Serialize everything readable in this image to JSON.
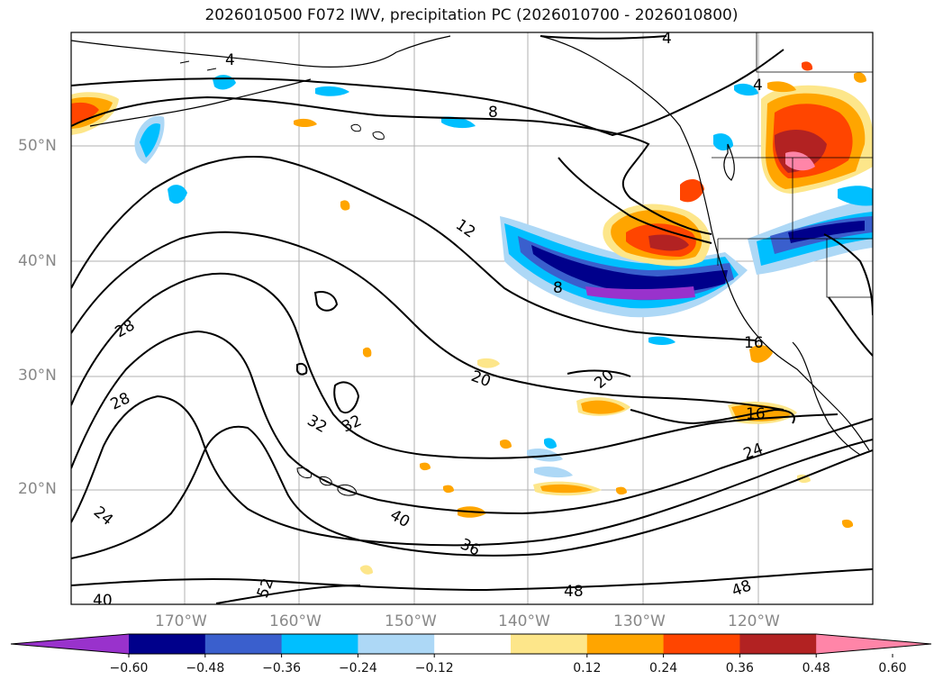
{
  "title": "2026010500 F072 IWV, precipitation PC (2026010700 - 2026010800)",
  "axes": {
    "lat_ticks": [
      "50°N",
      "40°N",
      "30°N",
      "20°N"
    ],
    "lon_ticks": [
      "170°W",
      "160°W",
      "150°W",
      "140°W",
      "130°W",
      "120°W"
    ]
  },
  "contour_labels": [
    "4",
    "4",
    "4",
    "8",
    "8",
    "12",
    "16",
    "16",
    "20",
    "20",
    "24",
    "24",
    "28",
    "28",
    "32",
    "32",
    "36",
    "40",
    "40",
    "48",
    "48",
    "52"
  ],
  "colorbar": {
    "ticks": [
      "−0.60",
      "−0.48",
      "−0.36",
      "−0.24",
      "−0.12",
      "0.12",
      "0.24",
      "0.36",
      "0.48",
      "0.60"
    ],
    "colors": [
      "#9932cc",
      "#00008b",
      "#3a5fcd",
      "#00bfff",
      "#add8f6",
      "#ffffff",
      "#fde68a",
      "#ffa500",
      "#ff4500",
      "#b22222",
      "#ff85a8"
    ]
  }
}
